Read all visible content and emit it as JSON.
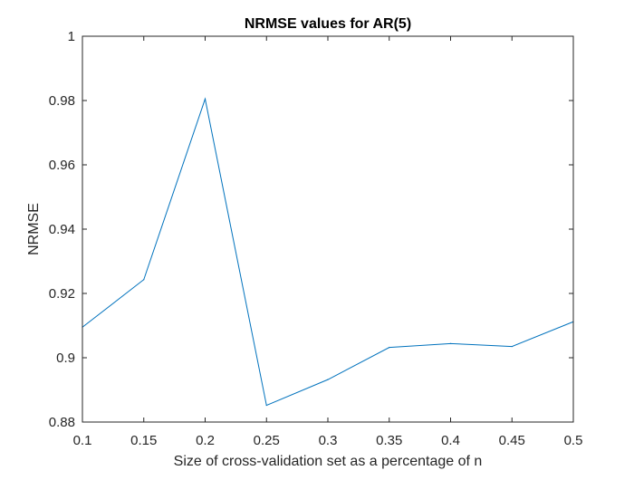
{
  "chart_data": {
    "type": "line",
    "title": "NRMSE values for AR(5)",
    "xlabel": "Size of cross-validation set as a percentage of n",
    "ylabel": "NRMSE",
    "xlim": [
      0.1,
      0.5
    ],
    "ylim": [
      0.88,
      1.0
    ],
    "x_ticks": [
      "0.1",
      "0.15",
      "0.2",
      "0.25",
      "0.3",
      "0.35",
      "0.4",
      "0.45",
      "0.5"
    ],
    "y_ticks": [
      "0.88",
      "0.9",
      "0.92",
      "0.94",
      "0.96",
      "0.98",
      "1"
    ],
    "grid": false,
    "series": [
      {
        "x": [
          0.1,
          0.15,
          0.2,
          0.25,
          0.3,
          0.35,
          0.4,
          0.45,
          0.5
        ],
        "y": [
          0.9095,
          0.9243,
          0.9805,
          0.8852,
          0.8932,
          0.9032,
          0.9044,
          0.9035,
          0.9112
        ],
        "color": "#0072BD"
      }
    ]
  }
}
